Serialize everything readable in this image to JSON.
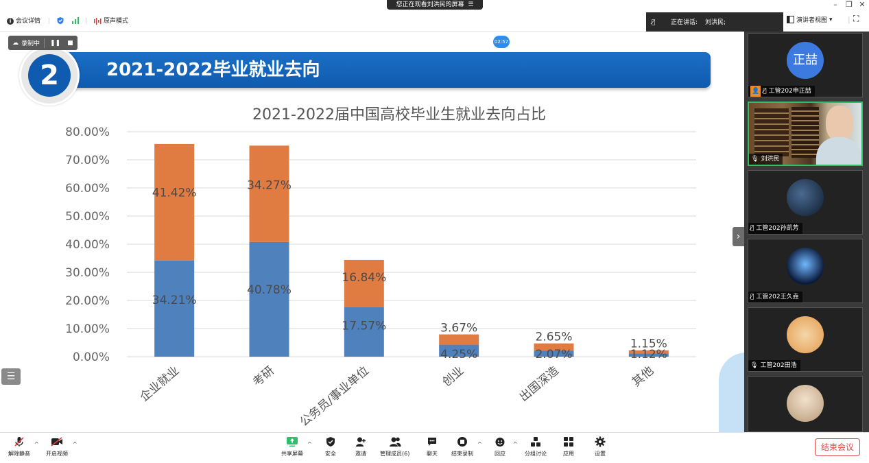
{
  "window": {
    "share_banner": "您正在观看刘洪民的屏幕",
    "banner_icon": "menu-icon"
  },
  "toolbar": {
    "meeting_info": "会议详情",
    "original_sound": "原声模式",
    "speaking_label": "正在讲话:",
    "speaker_name": "刘洪民;",
    "view_mode": "演讲者视图"
  },
  "recording": {
    "label": "录制中",
    "timer": "02:57"
  },
  "slide": {
    "number": "2",
    "title": "2021-2022毕业就业去向"
  },
  "chart_data": {
    "type": "bar",
    "stacked": true,
    "title": "2021-2022届中国高校毕业生就业去向占比",
    "categories": [
      "企业就业",
      "考研",
      "公务员/事业单位",
      "创业",
      "出国深造",
      "其他"
    ],
    "y_tick_labels": [
      "0.00%",
      "10.00%",
      "20.00%",
      "30.00%",
      "40.00%",
      "50.00%",
      "60.00%",
      "70.00%",
      "80.00%"
    ],
    "ylim": [
      0,
      80
    ],
    "grid": true,
    "series": [
      {
        "color": "#4f81bd",
        "values": [
          34.21,
          40.78,
          17.57,
          4.25,
          2.07,
          1.12
        ],
        "labels": [
          "34.21%",
          "40.78%",
          "17.57%",
          "4.25%",
          "2.07%",
          "1.12%"
        ]
      },
      {
        "color": "#e07b42",
        "values": [
          41.42,
          34.27,
          16.84,
          3.67,
          2.65,
          1.15
        ],
        "labels": [
          "41.42%",
          "34.27%",
          "16.84%",
          "3.67%",
          "2.65%",
          "1.15%"
        ]
      }
    ]
  },
  "participants": [
    {
      "name": "工管202申正喆",
      "avatar_text": "正喆",
      "avatar_color": "#3c7ae0",
      "mic": "muted",
      "host_badge": true
    },
    {
      "name": "刘洪民",
      "mic": "on",
      "video": true,
      "active": true
    },
    {
      "name": "工管202孙凯芳",
      "mic": "muted",
      "avatar_color": "#1f3550"
    },
    {
      "name": "工管202王久垚",
      "mic": "muted",
      "avatar_color": "#0d1d3a"
    },
    {
      "name": "工管202田浩",
      "mic": "on",
      "avatar_color": "#e8a25a"
    },
    {
      "name": "",
      "avatar_color": "#d9c2a5"
    }
  ],
  "bottom_toolbar": {
    "items": [
      "解除静音",
      "开启视频",
      "共享屏幕",
      "安全",
      "邀请",
      "管理成员(6)",
      "聊天",
      "结束录制",
      "回应",
      "分组讨论",
      "应用",
      "设置"
    ],
    "end_meeting": "结束会议"
  }
}
